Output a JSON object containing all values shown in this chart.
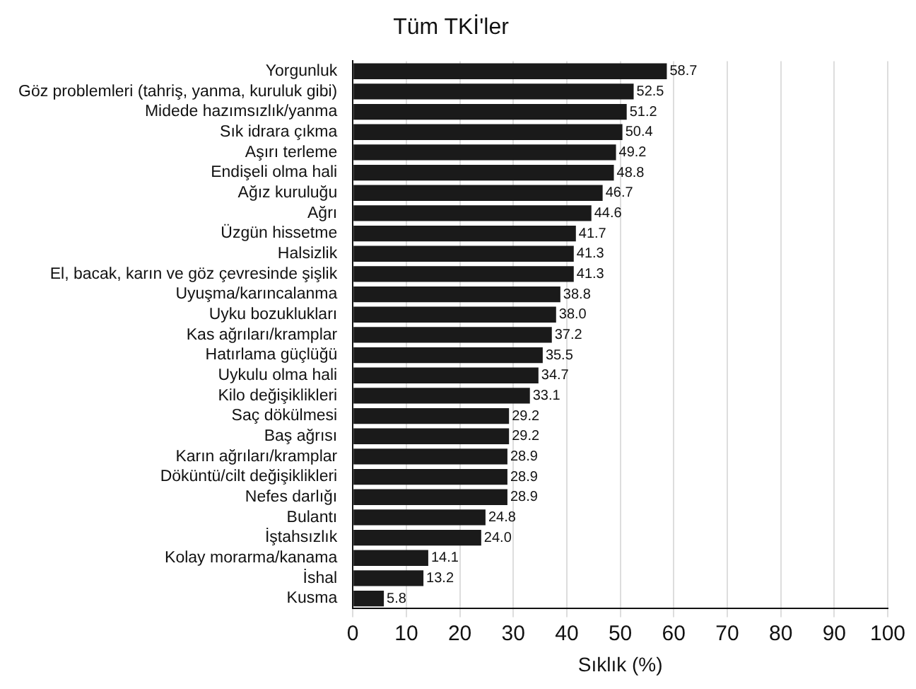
{
  "chart_data": {
    "type": "bar",
    "orientation": "horizontal",
    "title": "Tüm TKİ'ler",
    "xlabel": "Sıklık (%)",
    "categories": [
      "Yorgunluk",
      "Göz problemleri (tahriş, yanma, kuruluk gibi)",
      "Midede hazımsızlık/yanma",
      "Sık idrara çıkma",
      "Aşırı terleme",
      "Endişeli olma hali",
      "Ağız kuruluğu",
      "Ağrı",
      "Üzgün hissetme",
      "Halsizlik",
      "El, bacak, karın ve göz çevresinde şişlik",
      "Uyuşma/karıncalanma",
      "Uyku bozuklukları",
      "Kas ağrıları/kramplar",
      "Hatırlama güçlüğü",
      "Uykulu olma hali",
      "Kilo değişiklikleri",
      "Saç dökülmesi",
      "Baş ağrısı",
      "Karın ağrıları/kramplar",
      "Döküntü/cilt değişiklikleri",
      "Nefes darlığı",
      "Bulantı",
      "İştahsızlık",
      "Kolay morarma/kanama",
      "İshal",
      "Kusma"
    ],
    "values": [
      58.7,
      52.5,
      51.2,
      50.4,
      49.2,
      48.8,
      46.7,
      44.6,
      41.7,
      41.3,
      41.3,
      38.8,
      38.0,
      37.2,
      35.5,
      34.7,
      33.1,
      29.2,
      29.2,
      28.9,
      28.9,
      28.9,
      24.8,
      24.0,
      14.1,
      13.2,
      5.8
    ],
    "value_labels": [
      "58.7",
      "52.5",
      "51.2",
      "50.4",
      "49.2",
      "48.8",
      "46.7",
      "44.6",
      "41.7",
      "41.3",
      "41.3",
      "38.8",
      "38.0",
      "37.2",
      "35.5",
      "34.7",
      "33.1",
      "29.2",
      "29.2",
      "28.9",
      "28.9",
      "28.9",
      "24.8",
      "24.0",
      "14.1",
      "13.2",
      "5.8"
    ],
    "color": "#1a1a1a",
    "xlim": [
      0,
      100
    ],
    "xticks": [
      0,
      10,
      20,
      30,
      40,
      50,
      60,
      70,
      80,
      90,
      100
    ],
    "grid": "x"
  }
}
